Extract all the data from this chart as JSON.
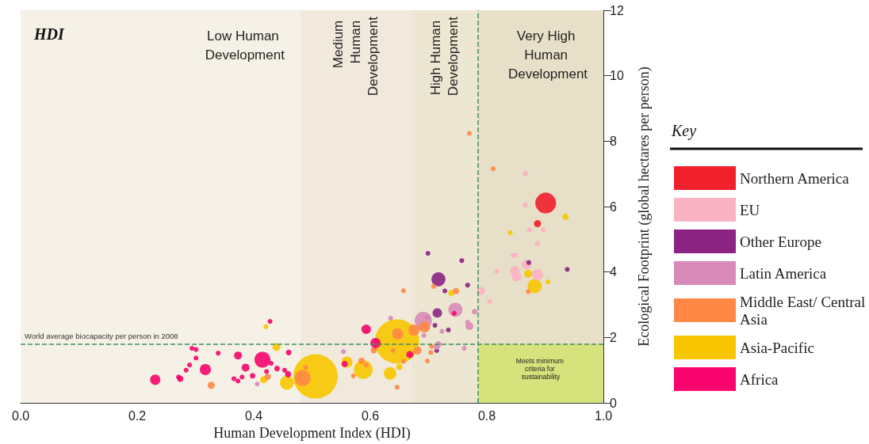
{
  "chart_data": {
    "type": "bubble",
    "title": "HDI",
    "xlabel": "Human Development Index (HDI)",
    "ylabel": "Ecological Footprint (global hectares per person)",
    "legend_title": "Key",
    "legend": "right",
    "xlim": [
      0,
      1
    ],
    "xticks": [
      {
        "value": 0,
        "label": "0.0"
      },
      0.2,
      0.4,
      0.6,
      0.8,
      {
        "value": 1,
        "label": "1.0"
      }
    ],
    "ylim": [
      0,
      12
    ],
    "yticks": [
      0,
      2,
      4,
      6,
      8,
      10,
      12
    ],
    "bands": [
      {
        "axis": "x",
        "from": 0,
        "to": 0.48,
        "label": "Low Human Development",
        "color": "#f5f1e6"
      },
      {
        "axis": "x",
        "from": 0.48,
        "to": 0.67,
        "label": "Medium Human Development",
        "color": "#f1e9dc"
      },
      {
        "axis": "x",
        "from": 0.67,
        "to": 0.785,
        "label": "High Human Development",
        "color": "#ede6d2"
      },
      {
        "axis": "x",
        "from": 0.785,
        "to": 1,
        "label": "Very High Human Development",
        "color": "#e7dfc7"
      },
      {
        "axis": "y",
        "from": 0,
        "to": 1.8,
        "label": "Meets minimum criteria for sustainability",
        "color": "#d6e27c"
      }
    ],
    "ref_lines": [
      {
        "axis": "y",
        "value": 1.8,
        "label": "World average biocapacity per person in 2008",
        "color": "#3f8f5f",
        "line_style": "dashed"
      },
      {
        "axis": "x",
        "value": 0.785,
        "label": null,
        "color": "#3f8f5f",
        "line_style": "dashed"
      }
    ],
    "series": [
      {
        "name": "Northern America",
        "color": "#f0202c",
        "x": [
          0.901,
          0.887
        ],
        "values": [
          6.11,
          5.48
        ],
        "sizes": [
          0.22,
          0.026
        ]
      },
      {
        "name": "EU",
        "color": "#f9b3c2",
        "x": [
          0.866,
          0.866,
          0.873,
          0.897,
          0.887,
          0.845,
          0.85,
          0.868,
          0.848,
          0.851,
          0.887,
          0.817,
          0.79,
          0.805
        ],
        "values": [
          7.01,
          6.05,
          5.29,
          5.29,
          4.87,
          4.51,
          4.52,
          4.23,
          4.04,
          3.86,
          3.92,
          4.02,
          3.42,
          3.1
        ],
        "sizes": [
          0.015,
          0.015,
          0.012,
          0.012,
          0.015,
          0.012,
          0.012,
          0.046,
          0.046,
          0.046,
          0.063,
          0.012,
          0.032,
          0.012
        ]
      },
      {
        "name": "Other Europe",
        "color": "#8b2383",
        "x": [
          0.717,
          0.728,
          0.715,
          0.734,
          0.767,
          0.757,
          0.938,
          0.711,
          0.714,
          0.872,
          0.698,
          0.699
        ],
        "values": [
          3.78,
          3.42,
          2.75,
          2.23,
          3.6,
          4.35,
          4.08,
          2.37,
          1.6,
          4.29,
          2.6,
          4.57
        ],
        "sizes": [
          0.1,
          0.012,
          0.046,
          0.012,
          0.012,
          0.012,
          0.012,
          0.012,
          0.012,
          0.012,
          0.012,
          0.012
        ]
      },
      {
        "name": "Latin America",
        "color": "#d88bb8",
        "x": [
          0.691,
          0.746,
          0.77,
          0.779,
          0.767,
          0.717,
          0.692,
          0.554,
          0.635,
          0.761,
          0.723,
          0.406,
          0.714
        ],
        "values": [
          2.52,
          2.85,
          2.35,
          2.79,
          2.47,
          1.79,
          2.06,
          1.57,
          2.59,
          1.67,
          2.19,
          0.58,
          1.72
        ],
        "sizes": [
          0.15,
          0.1,
          0.032,
          0.016,
          0.012,
          0.02,
          0.012,
          0.012,
          0.012,
          0.012,
          0.012,
          0.012,
          0.02
        ]
      },
      {
        "name": "Middle East/ Central Asia",
        "color": "#ff8845",
        "x": [
          0.327,
          0.424,
          0.484,
          0.489,
          0.571,
          0.647,
          0.675,
          0.693,
          0.606,
          0.585,
          0.681,
          0.657,
          0.705,
          0.704,
          0.698,
          0.646,
          0.593,
          0.639,
          0.709,
          0.747,
          0.871,
          0.77,
          0.811,
          0.657
        ],
        "values": [
          0.54,
          0.8,
          0.76,
          1.08,
          0.83,
          2.11,
          2.23,
          2.32,
          1.61,
          1.29,
          1.6,
          1.27,
          1.73,
          1.54,
          1.28,
          0.48,
          1.16,
          1.61,
          3.56,
          3.42,
          3.4,
          8.24,
          7.16,
          3.43
        ],
        "sizes": [
          0.026,
          0.02,
          0.13,
          0.012,
          0.012,
          0.063,
          0.063,
          0.063,
          0.02,
          0.02,
          0.032,
          0.012,
          0.012,
          0.012,
          0.012,
          0.012,
          0.012,
          0.012,
          0.012,
          0.02,
          0.012,
          0.012,
          0.012,
          0.012
        ]
      },
      {
        "name": "Asia-Pacific",
        "color": "#f7c600",
        "x": [
          0.506,
          0.646,
          0.439,
          0.417,
          0.457,
          0.56,
          0.588,
          0.634,
          0.65,
          0.421,
          0.739,
          0.871,
          0.882,
          0.905,
          0.935,
          0.84
        ],
        "values": [
          0.81,
          1.88,
          1.71,
          0.71,
          0.62,
          1.25,
          1.02,
          0.9,
          1.1,
          2.33,
          3.36,
          3.95,
          3.57,
          3.7,
          5.69,
          5.2
        ],
        "sizes": [
          1,
          1,
          0.032,
          0.026,
          0.1,
          0.063,
          0.18,
          0.08,
          0.02,
          0.012,
          0.02,
          0.032,
          0.1,
          0.012,
          0.02,
          0.012
        ]
      },
      {
        "name": "Africa",
        "color": "#f7046c",
        "x": [
          0.231,
          0.274,
          0.271,
          0.294,
          0.301,
          0.301,
          0.29,
          0.284,
          0.317,
          0.339,
          0.373,
          0.386,
          0.366,
          0.373,
          0.38,
          0.398,
          0.415,
          0.43,
          0.422,
          0.44,
          0.453,
          0.459,
          0.46,
          0.428,
          0.556,
          0.593,
          0.609,
          0.668,
          0.744
        ],
        "values": [
          0.71,
          0.74,
          0.79,
          1.67,
          1.63,
          1.37,
          1.16,
          1.0,
          1.02,
          1.52,
          1.45,
          1.08,
          0.74,
          0.67,
          0.79,
          0.83,
          1.32,
          1.21,
          0.96,
          1.05,
          1.0,
          0.88,
          1.54,
          2.49,
          1.19,
          2.25,
          1.83,
          1.48,
          2.74
        ],
        "sizes": [
          0.054,
          0.02,
          0.012,
          0.012,
          0.012,
          0.012,
          0.012,
          0.012,
          0.063,
          0.012,
          0.032,
          0.032,
          0.012,
          0.012,
          0.012,
          0.016,
          0.13,
          0.012,
          0.012,
          0.016,
          0.012,
          0.02,
          0.016,
          0.012,
          0.02,
          0.046,
          0.054,
          0.026,
          0.012
        ]
      }
    ]
  }
}
